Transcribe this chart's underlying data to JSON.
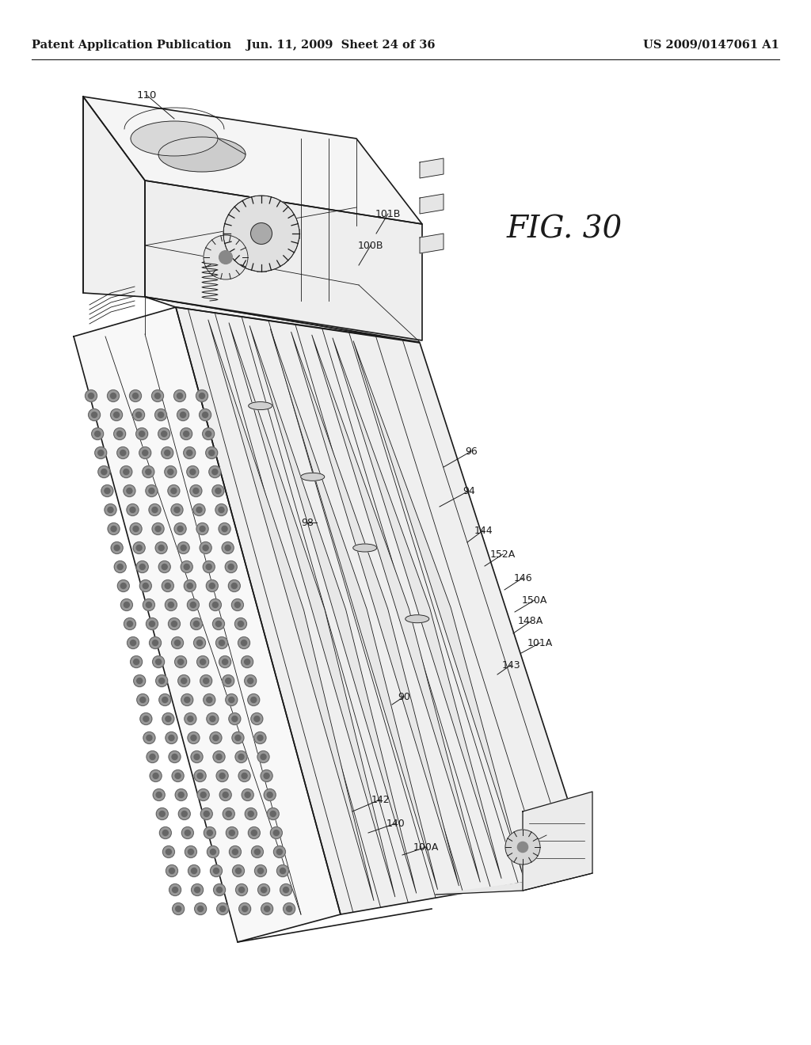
{
  "background_color": "#ffffff",
  "header_left": "Patent Application Publication",
  "header_center": "Jun. 11, 2009  Sheet 24 of 36",
  "header_right": "US 2009/0147061 A1",
  "header_fontsize": 10.5,
  "fig_label": "FIG. 30",
  "fig_label_fontsize": 28,
  "line_color": "#1a1a1a",
  "lw_main": 1.2,
  "lw_thin": 0.6,
  "lw_med": 0.9
}
